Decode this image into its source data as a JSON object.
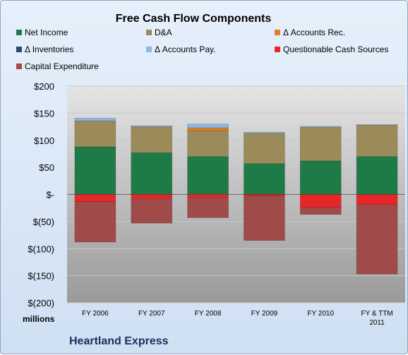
{
  "chart_data": {
    "type": "bar",
    "stacked": true,
    "title": "Free Cash Flow Components",
    "footer": "Heartland Express",
    "ylabel": "",
    "y_unit_label": "millions",
    "ylim": [
      -200,
      200
    ],
    "yticks": [
      {
        "value": 200,
        "label": "$200"
      },
      {
        "value": 150,
        "label": "$150"
      },
      {
        "value": 100,
        "label": "$100"
      },
      {
        "value": 50,
        "label": "$50"
      },
      {
        "value": 0,
        "label": "$-"
      },
      {
        "value": -50,
        "label": "$(50)"
      },
      {
        "value": -100,
        "label": "$(100)"
      },
      {
        "value": -150,
        "label": "$(150)"
      },
      {
        "value": -200,
        "label": "$(200)"
      }
    ],
    "categories": [
      "FY 2006",
      "FY 2007",
      "FY 2008",
      "FY 2009",
      "FY 2010",
      "FY & TTM 2011"
    ],
    "legend_position": "top",
    "grid": true,
    "series": [
      {
        "name": "Net Income",
        "color": "#1e7a46",
        "values": [
          88,
          77,
          70,
          57,
          62,
          70
        ]
      },
      {
        "name": "D&A",
        "color": "#9c8b5a",
        "values": [
          48,
          48,
          48,
          56,
          62,
          58
        ]
      },
      {
        "name": "Δ Accounts Rec.",
        "color": "#e0801e",
        "values": [
          0,
          0,
          5,
          0,
          0,
          0
        ]
      },
      {
        "name": "Δ Inventories",
        "color": "#2a4a6e",
        "values": [
          0,
          0,
          0,
          0,
          0,
          0
        ]
      },
      {
        "name": "Δ Accounts Pay.",
        "color": "#8eb7e4",
        "values": [
          5,
          2,
          7,
          2,
          2,
          1
        ]
      },
      {
        "name": "Questionable Cash Sources",
        "color": "#e8262a",
        "values": [
          -13,
          -8,
          -6,
          -3,
          -24,
          -19
        ]
      },
      {
        "name": "Capital Expenditure",
        "color": "#a04a4a",
        "values": [
          -75,
          -45,
          -37,
          -82,
          -13,
          -128
        ]
      }
    ]
  }
}
